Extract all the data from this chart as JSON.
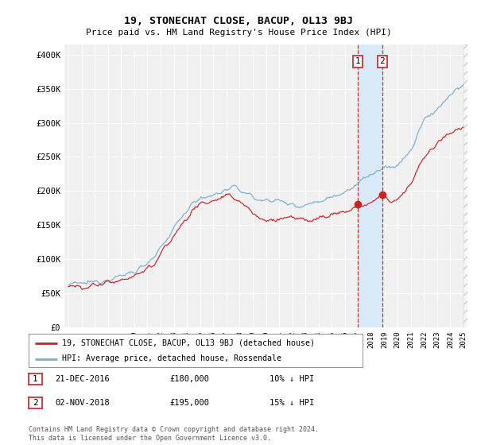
{
  "title": "19, STONECHAT CLOSE, BACUP, OL13 9BJ",
  "subtitle": "Price paid vs. HM Land Registry's House Price Index (HPI)",
  "ylabel_ticks": [
    "£0",
    "£50K",
    "£100K",
    "£150K",
    "£200K",
    "£250K",
    "£300K",
    "£350K",
    "£400K"
  ],
  "ytick_values": [
    0,
    50000,
    100000,
    150000,
    200000,
    250000,
    300000,
    350000,
    400000
  ],
  "ylim": [
    0,
    415000
  ],
  "xlim_start": 1994.7,
  "xlim_end": 2025.3,
  "hpi_color": "#7aadd4",
  "price_color": "#cc2222",
  "highlight_color": "#d8eaf7",
  "dashed_line_color": "#cc3333",
  "marker1_date": 2016.97,
  "marker2_date": 2018.84,
  "marker1_price": 180000,
  "marker2_price": 195000,
  "annotation1_label": "21-DEC-2016",
  "annotation1_price": "£180,000",
  "annotation1_info": "10% ↓ HPI",
  "annotation2_label": "02-NOV-2018",
  "annotation2_price": "£195,000",
  "annotation2_info": "15% ↓ HPI",
  "legend_line1": "19, STONECHAT CLOSE, BACUP, OL13 9BJ (detached house)",
  "legend_line2": "HPI: Average price, detached house, Rossendale",
  "footer": "Contains HM Land Registry data © Crown copyright and database right 2024.\nThis data is licensed under the Open Government Licence v3.0.",
  "background_color": "#ffffff",
  "plot_bg_color": "#f0f0f0"
}
